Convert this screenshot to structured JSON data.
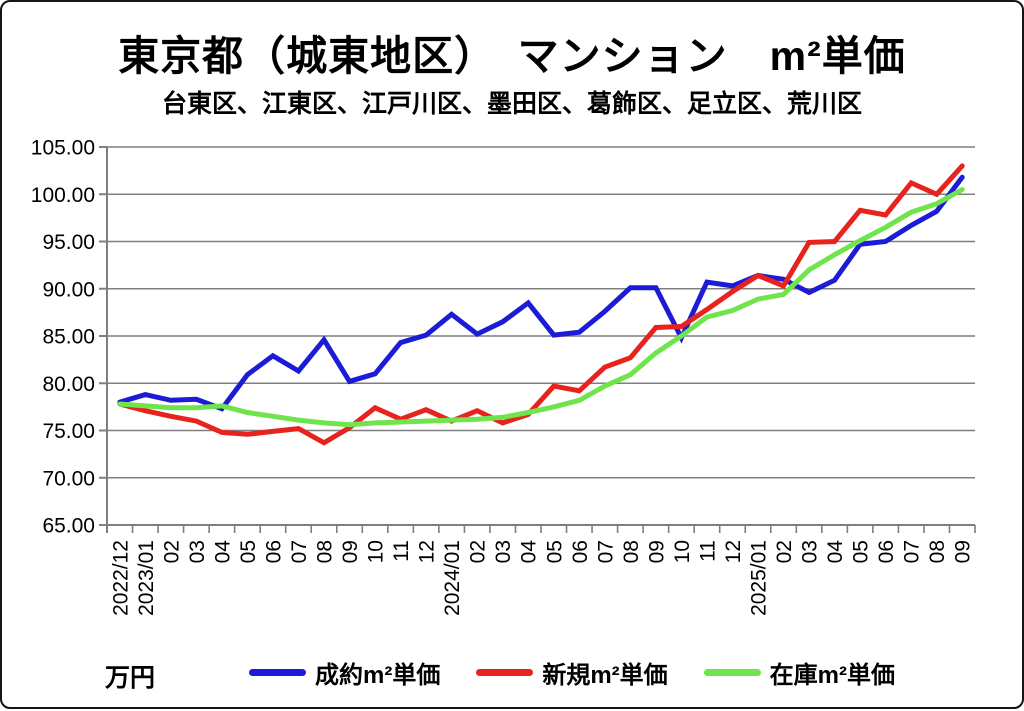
{
  "title": "東京都（城東地区）　マンション　m²単価",
  "subtitle": "台東区、江東区、江戸川区、墨田区、葛飾区、足立区、荒川区",
  "unit_label": "万円",
  "chart_data": {
    "type": "line",
    "x": [
      "2022/12",
      "2023/01",
      "02",
      "03",
      "04",
      "05",
      "06",
      "07",
      "08",
      "09",
      "10",
      "11",
      "12",
      "2024/01",
      "02",
      "03",
      "04",
      "05",
      "06",
      "07",
      "08",
      "09",
      "10",
      "11",
      "12",
      "2025/01",
      "02",
      "03",
      "04",
      "05",
      "06",
      "07",
      "08",
      "09"
    ],
    "ylim": [
      65,
      105
    ],
    "ytick_step": 5,
    "ytick_labels": [
      "105.00",
      "100.00",
      "95.00",
      "90.00",
      "85.00",
      "80.00",
      "75.00",
      "70.00",
      "65.00"
    ],
    "ylabel": "万円",
    "grid": true,
    "legend_position": "bottom",
    "grid_color": "#7f7f7f",
    "axis_color": "#7f7f7f",
    "background_color": "#ffffff",
    "series": [
      {
        "name": "成約m²単価",
        "color": "#1c1cd6",
        "values": [
          78.0,
          78.8,
          78.2,
          78.3,
          77.3,
          80.9,
          82.9,
          81.3,
          84.6,
          80.2,
          81.0,
          84.3,
          85.1,
          87.3,
          85.2,
          86.5,
          88.5,
          85.1,
          85.4,
          87.6,
          90.1,
          90.1,
          84.8,
          90.7,
          90.3,
          91.4,
          91.0,
          89.6,
          90.9,
          94.7,
          95.0,
          96.7,
          98.2,
          101.8
        ]
      },
      {
        "name": "新規m²単価",
        "color": "#e8231d",
        "values": [
          77.8,
          77.1,
          76.5,
          76.0,
          74.8,
          74.6,
          74.9,
          75.2,
          73.7,
          75.3,
          77.4,
          76.2,
          77.2,
          76.0,
          77.1,
          75.8,
          76.7,
          79.7,
          79.2,
          81.7,
          82.7,
          85.9,
          86.0,
          87.8,
          89.7,
          91.4,
          90.3,
          94.9,
          95.0,
          98.3,
          97.8,
          101.2,
          100.0,
          103.0
        ]
      },
      {
        "name": "在庫m²単価",
        "color": "#6fe44c",
        "values": [
          77.8,
          77.6,
          77.4,
          77.4,
          77.6,
          76.9,
          76.5,
          76.1,
          75.8,
          75.6,
          75.8,
          75.9,
          76.0,
          76.1,
          76.2,
          76.4,
          76.9,
          77.5,
          78.2,
          79.7,
          80.9,
          83.2,
          85.0,
          87.0,
          87.7,
          88.9,
          89.4,
          92.0,
          93.6,
          95.1,
          96.5,
          98.1,
          99.0,
          100.5
        ]
      }
    ]
  }
}
